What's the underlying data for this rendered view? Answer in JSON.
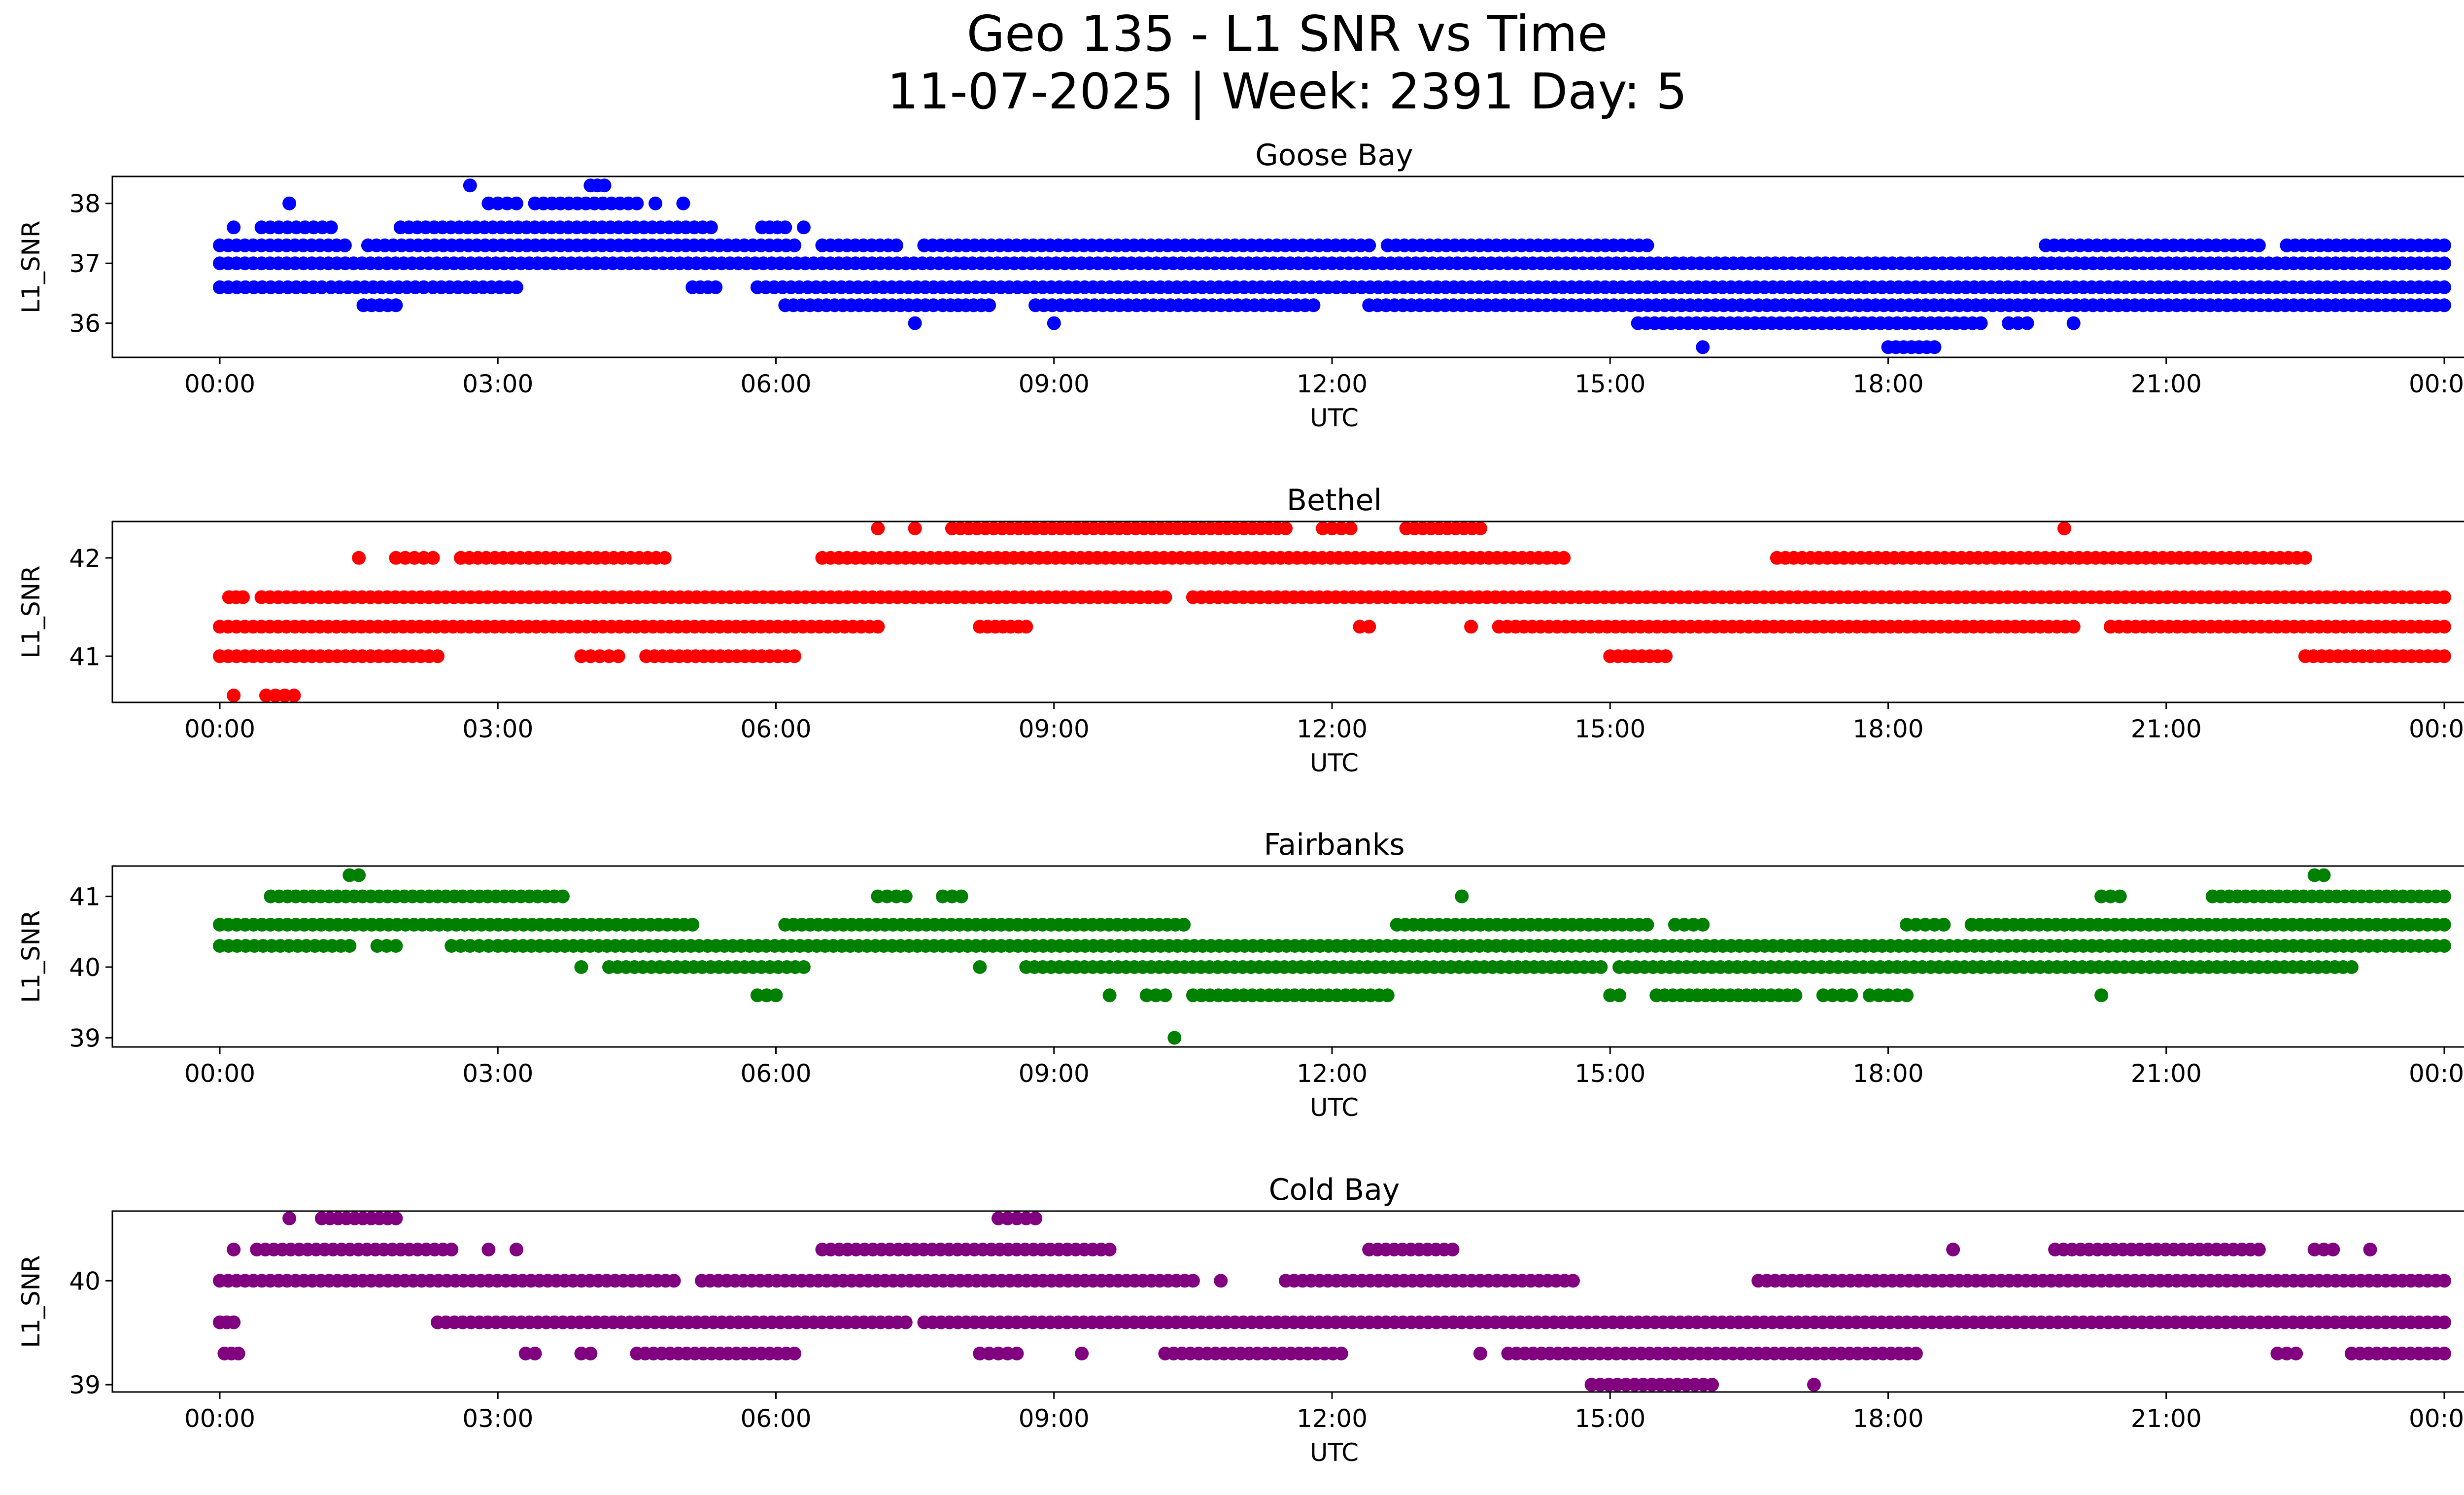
{
  "figure": {
    "title_line1": "Geo 135 - L1 SNR vs Time",
    "title_line2": "11-07-2025 | Week: 2391 Day: 5"
  },
  "colors": {
    "Goose Bay": "#0000ff",
    "Bethel": "#ff0000",
    "Fairbanks": "#008000",
    "Cold Bay": "#800080"
  },
  "chart_data": [
    {
      "type": "scatter",
      "title": "Goose Bay",
      "xlabel": "UTC",
      "ylabel": "L1_SNR",
      "xlim": [
        -1.15,
        25.15
      ],
      "ylim": [
        35.43,
        38.45
      ],
      "xticks": [
        "00:00",
        "03:00",
        "06:00",
        "09:00",
        "12:00",
        "15:00",
        "18:00",
        "21:00",
        "00:00"
      ],
      "yticks": [
        36,
        37,
        38
      ],
      "levels": [
        35.6,
        36.0,
        36.3,
        36.6,
        37.0,
        37.3,
        37.6,
        38.0,
        38.3
      ],
      "series": [
        {
          "name": "Goose Bay",
          "color": "#0000ff",
          "points": [
            {
              "y": 37.0,
              "ranges": [
                [
                  0.0,
                  24.0
                ]
              ]
            },
            {
              "y": 37.3,
              "ranges": [
                [
                  0.0,
                  1.35
                ],
                [
                  1.6,
                  6.2
                ],
                [
                  6.5,
                  7.3
                ],
                [
                  7.6,
                  12.4
                ],
                [
                  12.6,
                  15.4
                ],
                [
                  19.7,
                  22.0
                ],
                [
                  22.3,
                  24.0
                ]
              ]
            },
            {
              "y": 36.6,
              "ranges": [
                [
                  0.0,
                  1.1
                ],
                [
                  1.2,
                  2.2
                ],
                [
                  2.3,
                  3.2
                ],
                [
                  5.1,
                  5.35
                ],
                [
                  5.8,
                  24.0
                ]
              ]
            },
            {
              "y": 36.3,
              "ranges": [
                [
                  1.55,
                  1.9
                ],
                [
                  6.1,
                  7.7
                ],
                [
                  7.8,
                  8.3
                ],
                [
                  8.8,
                  11.8
                ],
                [
                  12.4,
                  16.5
                ],
                [
                  16.6,
                  24.0
                ]
              ]
            },
            {
              "y": 37.6,
              "ranges": [
                [
                  0.15,
                  0.15
                ],
                [
                  0.45,
                  1.2
                ],
                [
                  1.95,
                  5.3
                ],
                [
                  5.85,
                  6.1
                ],
                [
                  6.3,
                  6.3
                ]
              ]
            },
            {
              "y": 38.0,
              "ranges": [
                [
                  0.75,
                  0.75
                ],
                [
                  2.9,
                  3.2
                ],
                [
                  3.4,
                  4.5
                ],
                [
                  4.7,
                  4.7
                ],
                [
                  5.0,
                  5.0
                ]
              ]
            },
            {
              "y": 36.0,
              "ranges": [
                [
                  7.5,
                  7.5
                ],
                [
                  9.0,
                  9.0
                ],
                [
                  15.3,
                  19.0
                ],
                [
                  19.3,
                  19.5
                ],
                [
                  20.0,
                  20.0
                ]
              ]
            },
            {
              "y": 38.3,
              "ranges": [
                [
                  2.7,
                  2.7
                ],
                [
                  4.0,
                  4.15
                ]
              ]
            },
            {
              "y": 35.6,
              "ranges": [
                [
                  16.0,
                  16.0
                ],
                [
                  18.0,
                  18.5
                ]
              ]
            }
          ]
        }
      ]
    },
    {
      "type": "scatter",
      "title": "Bethel",
      "xlabel": "UTC",
      "ylabel": "L1_SNR",
      "xlim": [
        -1.15,
        25.15
      ],
      "ylim": [
        40.53,
        42.37
      ],
      "xticks": [
        "00:00",
        "03:00",
        "06:00",
        "09:00",
        "12:00",
        "15:00",
        "18:00",
        "21:00",
        "00:00"
      ],
      "yticks": [
        41,
        42
      ],
      "levels": [
        40.6,
        41.0,
        41.3,
        41.6,
        42.0,
        42.3
      ],
      "series": [
        {
          "name": "Bethel",
          "color": "#ff0000",
          "points": [
            {
              "y": 41.6,
              "ranges": [
                [
                  0.1,
                  0.25
                ],
                [
                  0.45,
                  10.2
                ],
                [
                  10.5,
                  24.0
                ]
              ]
            },
            {
              "y": 41.3,
              "ranges": [
                [
                  0.0,
                  7.1
                ],
                [
                  8.2,
                  8.7
                ],
                [
                  12.3,
                  12.4
                ],
                [
                  13.5,
                  13.5
                ],
                [
                  13.8,
                  20.0
                ],
                [
                  20.4,
                  24.0
                ]
              ]
            },
            {
              "y": 41.0,
              "ranges": [
                [
                  0.0,
                  2.35
                ],
                [
                  3.9,
                  4.3
                ],
                [
                  4.6,
                  6.2
                ],
                [
                  15.0,
                  15.6
                ],
                [
                  22.5,
                  24.0
                ]
              ]
            },
            {
              "y": 42.0,
              "ranges": [
                [
                  1.5,
                  1.5
                ],
                [
                  1.9,
                  2.3
                ],
                [
                  2.6,
                  4.8
                ],
                [
                  6.5,
                  14.5
                ],
                [
                  16.8,
                  22.5
                ]
              ]
            },
            {
              "y": 42.3,
              "ranges": [
                [
                  7.1,
                  7.1
                ],
                [
                  7.5,
                  7.5
                ],
                [
                  7.9,
                  11.5
                ],
                [
                  11.9,
                  12.2
                ],
                [
                  12.8,
                  13.6
                ],
                [
                  19.9,
                  19.9
                ]
              ]
            },
            {
              "y": 40.6,
              "ranges": [
                [
                  0.15,
                  0.15
                ],
                [
                  0.5,
                  0.8
                ]
              ]
            }
          ]
        }
      ]
    },
    {
      "type": "scatter",
      "title": "Fairbanks",
      "xlabel": "UTC",
      "ylabel": "L1_SNR",
      "xlim": [
        -1.15,
        25.15
      ],
      "ylim": [
        38.87,
        41.43
      ],
      "xticks": [
        "00:00",
        "03:00",
        "06:00",
        "09:00",
        "12:00",
        "15:00",
        "18:00",
        "21:00",
        "00:00"
      ],
      "yticks": [
        39,
        40,
        41
      ],
      "levels": [
        39.0,
        39.6,
        40.0,
        40.3,
        40.6,
        41.0,
        41.3
      ],
      "series": [
        {
          "name": "Fairbanks",
          "color": "#008000",
          "points": [
            {
              "y": 40.3,
              "ranges": [
                [
                  0.0,
                  1.4
                ],
                [
                  1.7,
                  1.9
                ],
                [
                  2.5,
                  2.9
                ],
                [
                  3.0,
                  24.0
                ]
              ]
            },
            {
              "y": 40.6,
              "ranges": [
                [
                  0.0,
                  5.1
                ],
                [
                  6.1,
                  10.4
                ],
                [
                  12.7,
                  15.4
                ],
                [
                  15.7,
                  16.0
                ],
                [
                  18.2,
                  18.6
                ],
                [
                  18.9,
                  24.0
                ]
              ]
            },
            {
              "y": 41.0,
              "ranges": [
                [
                  0.55,
                  3.7
                ],
                [
                  7.1,
                  7.4
                ],
                [
                  7.8,
                  8.0
                ],
                [
                  13.4,
                  13.4
                ],
                [
                  20.3,
                  20.5
                ],
                [
                  21.5,
                  24.0
                ]
              ]
            },
            {
              "y": 40.0,
              "ranges": [
                [
                  3.9,
                  3.9
                ],
                [
                  4.2,
                  6.3
                ],
                [
                  8.2,
                  8.2
                ],
                [
                  8.7,
                  14.9
                ],
                [
                  15.1,
                  23.0
                ]
              ]
            },
            {
              "y": 39.6,
              "ranges": [
                [
                  5.8,
                  6.0
                ],
                [
                  9.6,
                  9.6
                ],
                [
                  10.0,
                  10.2
                ],
                [
                  10.5,
                  12.6
                ],
                [
                  15.0,
                  15.1
                ],
                [
                  15.5,
                  17.0
                ],
                [
                  17.3,
                  17.6
                ],
                [
                  17.8,
                  18.2
                ],
                [
                  20.3,
                  20.3
                ]
              ]
            },
            {
              "y": 41.3,
              "ranges": [
                [
                  1.4,
                  1.5
                ],
                [
                  22.6,
                  22.7
                ]
              ]
            },
            {
              "y": 39.0,
              "ranges": [
                [
                  10.3,
                  10.3
                ]
              ]
            }
          ]
        }
      ]
    },
    {
      "type": "scatter",
      "title": "Cold Bay",
      "xlabel": "UTC",
      "ylabel": "L1_SNR",
      "xlim": [
        -1.15,
        25.15
      ],
      "ylim": [
        38.93,
        40.67
      ],
      "xticks": [
        "00:00",
        "03:00",
        "06:00",
        "09:00",
        "12:00",
        "15:00",
        "18:00",
        "21:00",
        "00:00"
      ],
      "yticks": [
        39,
        40
      ],
      "levels": [
        39.0,
        39.3,
        39.6,
        40.0,
        40.3,
        40.6
      ],
      "series": [
        {
          "name": "Cold Bay",
          "color": "#800080",
          "points": [
            {
              "y": 40.0,
              "ranges": [
                [
                  0.0,
                  4.9
                ],
                [
                  5.2,
                  10.5
                ],
                [
                  10.8,
                  10.8
                ],
                [
                  11.5,
                  14.6
                ],
                [
                  16.6,
                  24.0
                ]
              ]
            },
            {
              "y": 39.6,
              "ranges": [
                [
                  0.0,
                  0.15
                ],
                [
                  2.35,
                  7.4
                ],
                [
                  7.6,
                  24.0
                ]
              ]
            },
            {
              "y": 39.3,
              "ranges": [
                [
                  0.05,
                  0.2
                ],
                [
                  3.3,
                  3.4
                ],
                [
                  3.9,
                  4.0
                ],
                [
                  4.5,
                  6.2
                ],
                [
                  8.2,
                  8.6
                ],
                [
                  9.3,
                  9.3
                ],
                [
                  10.2,
                  12.1
                ],
                [
                  13.6,
                  13.6
                ],
                [
                  13.9,
                  18.3
                ],
                [
                  22.2,
                  22.4
                ],
                [
                  23.0,
                  24.0
                ]
              ]
            },
            {
              "y": 40.3,
              "ranges": [
                [
                  0.15,
                  0.15
                ],
                [
                  0.4,
                  2.5
                ],
                [
                  2.9,
                  2.9
                ],
                [
                  3.2,
                  3.2
                ],
                [
                  6.5,
                  9.6
                ],
                [
                  12.4,
                  13.3
                ],
                [
                  18.7,
                  18.7
                ],
                [
                  19.8,
                  22.0
                ],
                [
                  22.6,
                  22.8
                ],
                [
                  23.2,
                  23.2
                ]
              ]
            },
            {
              "y": 40.6,
              "ranges": [
                [
                  0.75,
                  0.75
                ],
                [
                  1.1,
                  1.9
                ],
                [
                  8.4,
                  8.8
                ]
              ]
            },
            {
              "y": 39.0,
              "ranges": [
                [
                  14.8,
                  16.1
                ],
                [
                  17.2,
                  17.2
                ]
              ]
            }
          ]
        }
      ]
    }
  ]
}
